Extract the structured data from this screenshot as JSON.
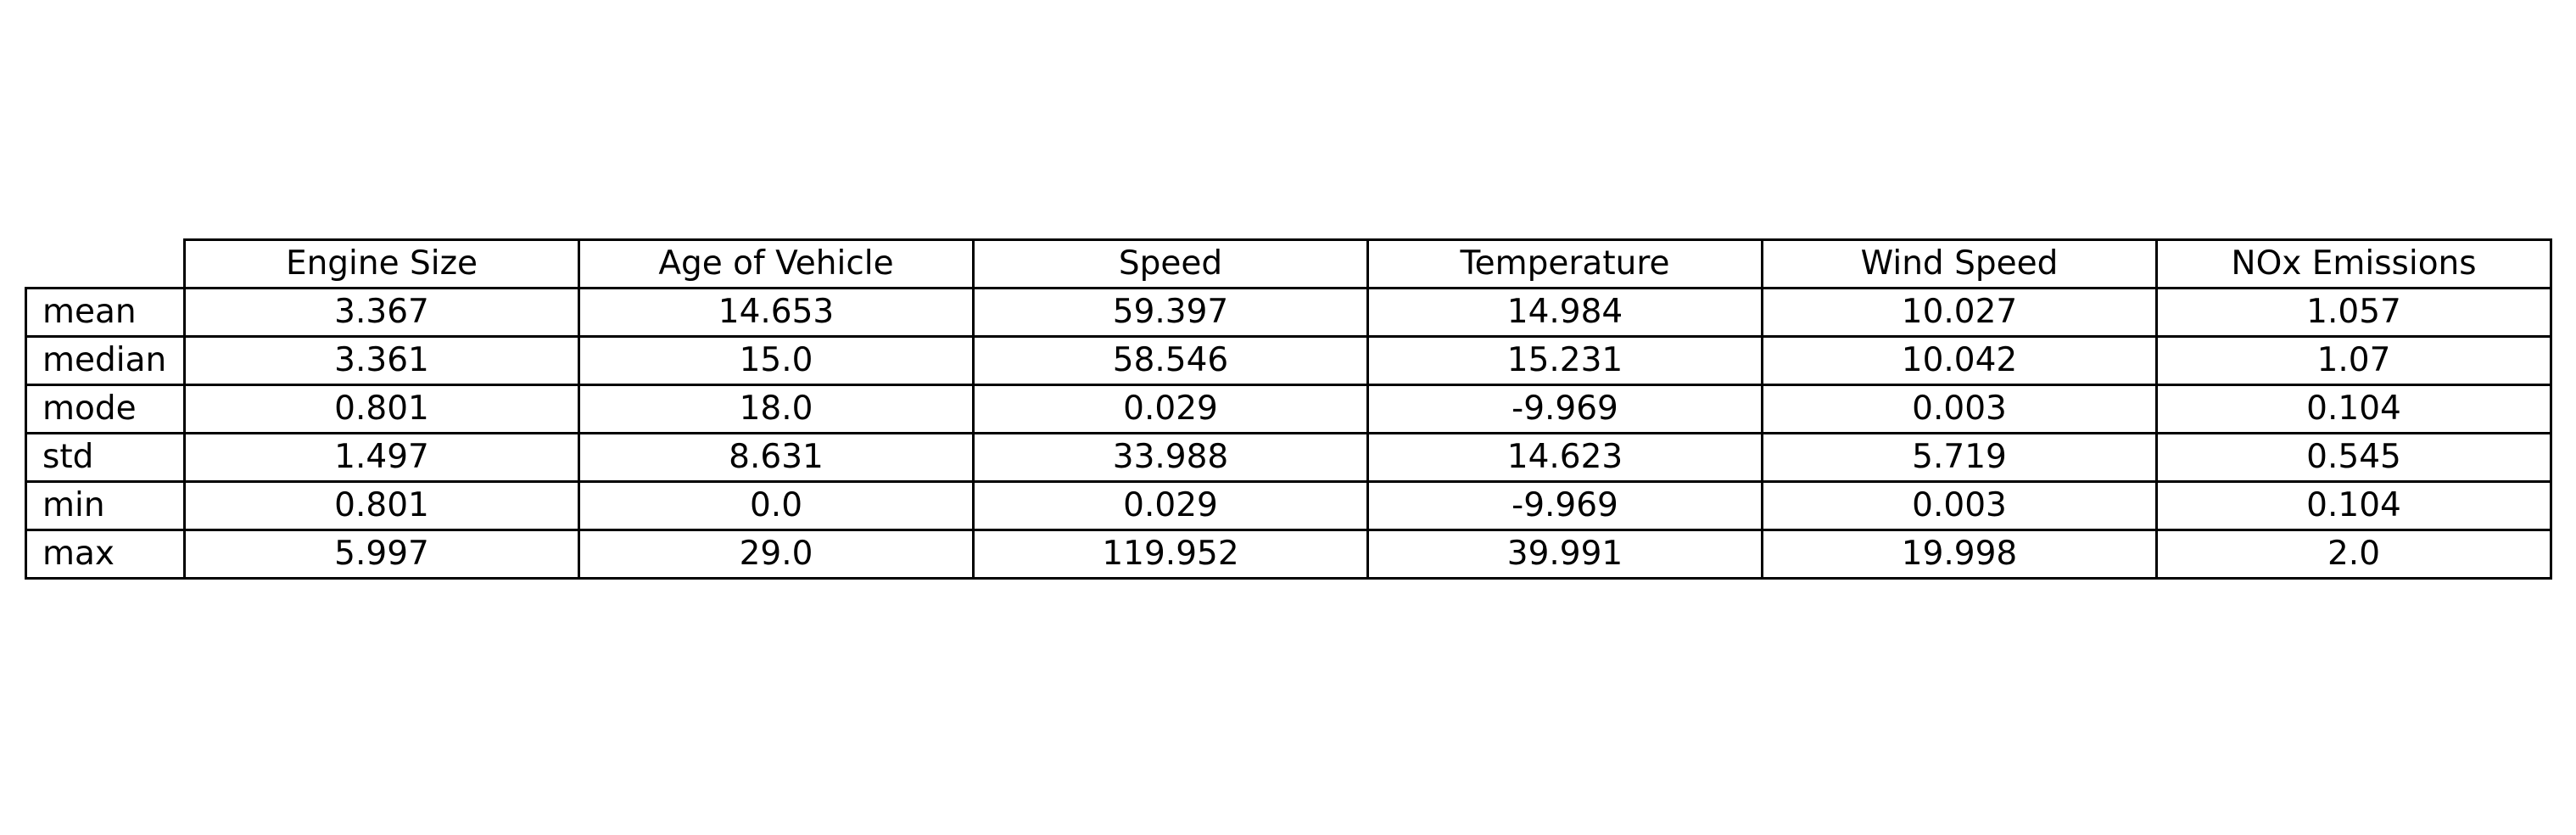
{
  "chart_data": {
    "type": "table",
    "columns": [
      "Engine Size",
      "Age of Vehicle",
      "Speed",
      "Temperature",
      "Wind Speed",
      "NOx Emissions"
    ],
    "rows": [
      {
        "label": "mean",
        "values": [
          "3.367",
          "14.653",
          "59.397",
          "14.984",
          "10.027",
          "1.057"
        ]
      },
      {
        "label": "median",
        "values": [
          "3.361",
          "15.0",
          "58.546",
          "15.231",
          "10.042",
          "1.07"
        ]
      },
      {
        "label": "mode",
        "values": [
          "0.801",
          "18.0",
          "0.029",
          "-9.969",
          "0.003",
          "0.104"
        ]
      },
      {
        "label": "std",
        "values": [
          "1.497",
          "8.631",
          "33.988",
          "14.623",
          "5.719",
          "0.545"
        ]
      },
      {
        "label": "min",
        "values": [
          "0.801",
          "0.0",
          "0.029",
          "-9.969",
          "0.003",
          "0.104"
        ]
      },
      {
        "label": "max",
        "values": [
          "5.997",
          "29.0",
          "119.952",
          "39.991",
          "19.998",
          "2.0"
        ]
      }
    ]
  }
}
